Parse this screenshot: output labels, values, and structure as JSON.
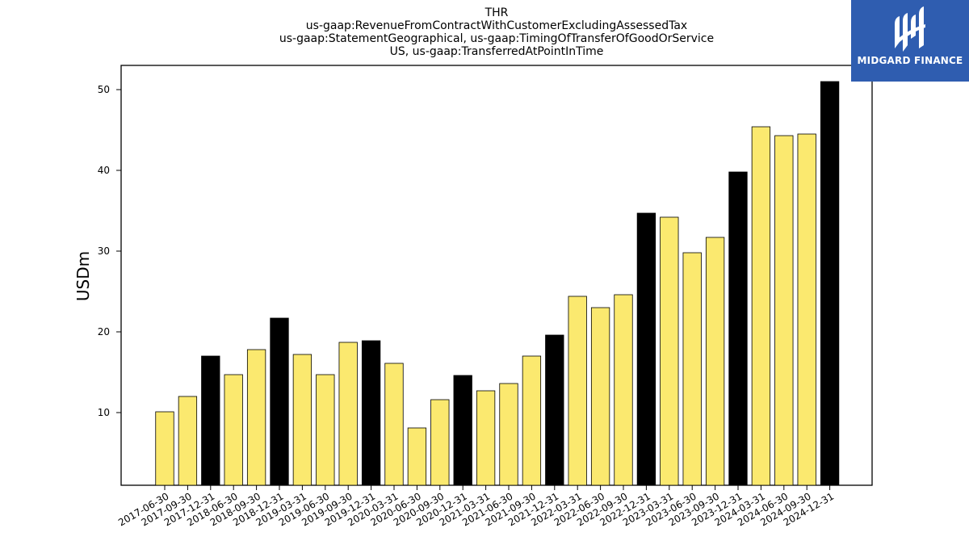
{
  "chart_data": {
    "type": "bar",
    "title": [
      "THR",
      "us-gaap:RevenueFromContractWithCustomerExcludingAssessedTax",
      "us-gaap:StatementGeographical, us-gaap:TimingOfTransferOfGoodOrService",
      "US, us-gaap:TransferredAtPointInTime"
    ],
    "xlabel": "",
    "ylabel": "USDm",
    "ylim": [
      1,
      53
    ],
    "yticks": [
      10,
      20,
      30,
      40,
      50
    ],
    "grid": false,
    "categories": [
      "2017-06-30",
      "2017-09-30",
      "2017-12-31",
      "2018-06-30",
      "2018-09-30",
      "2018-12-31",
      "2019-03-31",
      "2019-06-30",
      "2019-09-30",
      "2019-12-31",
      "2020-03-31",
      "2020-06-30",
      "2020-09-30",
      "2020-12-31",
      "2021-03-31",
      "2021-06-30",
      "2021-09-30",
      "2021-12-31",
      "2022-03-31",
      "2022-06-30",
      "2022-09-30",
      "2022-12-31",
      "2023-03-31",
      "2023-06-30",
      "2023-09-30",
      "2023-12-31",
      "2024-03-31",
      "2024-06-30",
      "2024-09-30",
      "2024-12-31"
    ],
    "values": [
      10.1,
      12.0,
      17.0,
      14.7,
      17.8,
      21.7,
      17.2,
      14.7,
      18.7,
      18.9,
      16.1,
      8.1,
      11.6,
      14.6,
      12.7,
      13.6,
      17.0,
      19.6,
      24.4,
      23.0,
      24.6,
      34.7,
      34.2,
      29.8,
      31.7,
      39.8,
      45.4,
      44.3,
      44.5,
      51.0
    ],
    "highlight_color": "#000000",
    "bar_color": "#fbe96f",
    "edge_color": "#000000",
    "highlight_categories": [
      "2017-12-31",
      "2018-12-31",
      "2019-12-31",
      "2020-12-31",
      "2021-12-31",
      "2022-12-31",
      "2023-12-31",
      "2024-12-31"
    ]
  },
  "logo": {
    "text": "MIDGARD FINANCE",
    "background": "#2f5db0",
    "icon": "midgard-logo-icon"
  }
}
